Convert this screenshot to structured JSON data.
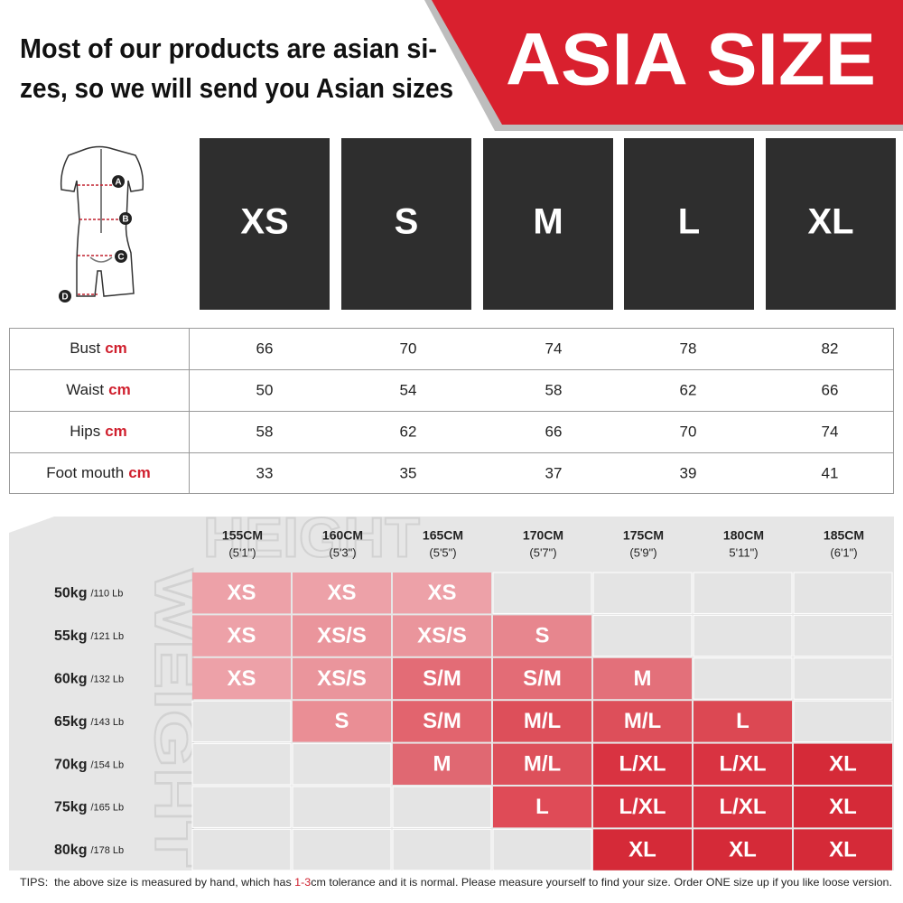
{
  "header": {
    "lines": [
      "Most of our products are asian si-",
      "zes, so we will send you Asian sizes"
    ],
    "banner": "ASIA SIZE",
    "banner_color": "#d9202e"
  },
  "diagram": {
    "labels": [
      "A",
      "B",
      "C",
      "D"
    ]
  },
  "sizes": [
    "XS",
    "S",
    "M",
    "L",
    "XL"
  ],
  "measurements": {
    "unit": "cm",
    "rows": [
      {
        "name": "Bust",
        "values": [
          66,
          70,
          74,
          78,
          82
        ]
      },
      {
        "name": "Waist",
        "values": [
          50,
          54,
          58,
          62,
          66
        ]
      },
      {
        "name": "Hips",
        "values": [
          58,
          62,
          66,
          70,
          74
        ]
      },
      {
        "name": "Foot mouth",
        "values": [
          33,
          35,
          37,
          39,
          41
        ]
      }
    ]
  },
  "chart": {
    "watermarks": [
      "HEIGHT",
      "WEIGHT"
    ],
    "heights": [
      {
        "cm": "155CM",
        "ft": "(5'1\")"
      },
      {
        "cm": "160CM",
        "ft": "(5'3\")"
      },
      {
        "cm": "165CM",
        "ft": "(5'5\")"
      },
      {
        "cm": "170CM",
        "ft": "(5'7\")"
      },
      {
        "cm": "175CM",
        "ft": "(5'9\")"
      },
      {
        "cm": "180CM",
        "ft": "5'11\")"
      },
      {
        "cm": "185CM",
        "ft": "(6'1\")"
      }
    ],
    "rows": [
      {
        "kg": "50kg",
        "lb": "/110 Lb",
        "cells": [
          {
            "text": "XS",
            "color": "#eda1a8"
          },
          {
            "text": "XS",
            "color": "#eda1a8"
          },
          {
            "text": "XS",
            "color": "#eda1a8"
          },
          null,
          null,
          null,
          null
        ]
      },
      {
        "kg": "55kg",
        "lb": "/121 Lb",
        "cells": [
          {
            "text": "XS",
            "color": "#eda1a8"
          },
          {
            "text": "XS/S",
            "color": "#ea959c"
          },
          {
            "text": "XS/S",
            "color": "#ea959c"
          },
          {
            "text": "S",
            "color": "#e7868e"
          },
          null,
          null,
          null
        ]
      },
      {
        "kg": "60kg",
        "lb": "/132 Lb",
        "cells": [
          {
            "text": "XS",
            "color": "#eda1a8"
          },
          {
            "text": "XS/S",
            "color": "#ea959c"
          },
          {
            "text": "S/M",
            "color": "#e36c76"
          },
          {
            "text": "S/M",
            "color": "#e36c76"
          },
          {
            "text": "M",
            "color": "#e3707a"
          },
          null,
          null
        ]
      },
      {
        "kg": "65kg",
        "lb": "/143 Lb",
        "cells": [
          null,
          {
            "text": "S",
            "color": "#ea8e95"
          },
          {
            "text": "S/M",
            "color": "#e2646e"
          },
          {
            "text": "M/L",
            "color": "#dd4f5a"
          },
          {
            "text": "M/L",
            "color": "#dd4f5a"
          },
          {
            "text": "L",
            "color": "#dc4853"
          },
          null
        ]
      },
      {
        "kg": "70kg",
        "lb": "/154 Lb",
        "cells": [
          null,
          null,
          {
            "text": "M",
            "color": "#e06872"
          },
          {
            "text": "M/L",
            "color": "#dd505b"
          },
          {
            "text": "L/XL",
            "color": "#d93341"
          },
          {
            "text": "L/XL",
            "color": "#d93341"
          },
          {
            "text": "XL",
            "color": "#d52a38"
          }
        ]
      },
      {
        "kg": "75kg",
        "lb": "/165 Lb",
        "cells": [
          null,
          null,
          null,
          {
            "text": "L",
            "color": "#df4b57"
          },
          {
            "text": "L/XL",
            "color": "#d93341"
          },
          {
            "text": "L/XL",
            "color": "#d93341"
          },
          {
            "text": "XL",
            "color": "#d52a38"
          }
        ]
      },
      {
        "kg": "80kg",
        "lb": "/178 Lb",
        "cells": [
          null,
          null,
          null,
          null,
          {
            "text": "XL",
            "color": "#d52a38"
          },
          {
            "text": "XL",
            "color": "#d52a38"
          },
          {
            "text": "XL",
            "color": "#d52a38"
          }
        ]
      }
    ]
  },
  "tips": {
    "parts": [
      "TIPS:  the above size is measured by hand, which has ",
      "1-3",
      "cm tolerance and it is normal. Please measure yourself to find your size. Order ONE size up if you like loose version."
    ]
  }
}
